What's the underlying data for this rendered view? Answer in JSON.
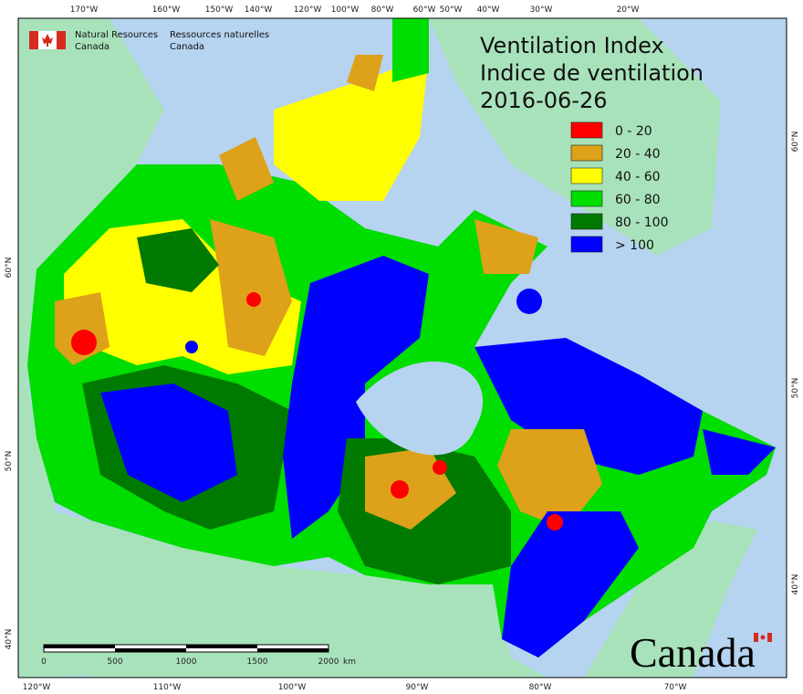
{
  "agency": {
    "en": [
      "Natural Resources",
      "Canada"
    ],
    "fr": [
      "Ressources naturelles",
      "Canada"
    ]
  },
  "title": [
    "Ventilation Index",
    "Indice de ventilation",
    "2016-06-26"
  ],
  "legend": [
    {
      "label": "0 - 20",
      "color": "#ff0000"
    },
    {
      "label": "20 - 40",
      "color": "#dda11a"
    },
    {
      "label": "40 - 60",
      "color": "#ffff00"
    },
    {
      "label": "60 - 80",
      "color": "#00dd00"
    },
    {
      "label": "80 - 100",
      "color": "#007a00"
    },
    {
      "label": "> 100",
      "color": "#0000ff"
    }
  ],
  "graticule": {
    "top": [
      "170°W",
      "160°W",
      "150°W",
      "140°W",
      "120°W",
      "100°W",
      "80°W",
      "60°W",
      "50°W",
      "40°W",
      "30°W",
      "20°W"
    ],
    "bottom": [
      "120°W",
      "110°W",
      "100°W",
      "90°W",
      "80°W",
      "70°W"
    ],
    "left": [
      "60°N",
      "50°N",
      "40°N"
    ],
    "right": [
      "60°N",
      "50°N",
      "40°N"
    ]
  },
  "scale_bar": {
    "labels": [
      0,
      500,
      1000,
      1500,
      2000
    ],
    "unit": "km"
  },
  "wordmark": "Canada"
}
